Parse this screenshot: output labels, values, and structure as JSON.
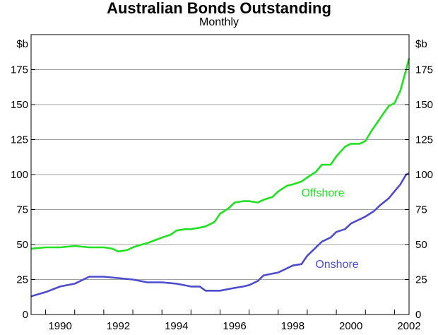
{
  "chart_data": {
    "type": "line",
    "title": "Australian Bonds Outstanding",
    "subtitle": "Monthly",
    "ylabel_left": "$b",
    "ylabel_right": "$b",
    "ylim": [
      0,
      200
    ],
    "yticks": [
      0,
      25,
      50,
      75,
      100,
      125,
      150,
      175
    ],
    "xlim": [
      1989.5,
      2002.5
    ],
    "xticks": [
      1990,
      1992,
      1994,
      1996,
      1998,
      2000,
      2002
    ],
    "grid": true,
    "series": [
      {
        "name": "Offshore",
        "color": "#22e022",
        "x": [
          1989.5,
          1990.0,
          1990.5,
          1991.0,
          1991.5,
          1992.0,
          1992.3,
          1992.5,
          1992.8,
          1993.0,
          1993.3,
          1993.5,
          1994.0,
          1994.3,
          1994.5,
          1994.8,
          1995.0,
          1995.3,
          1995.5,
          1995.8,
          1996.0,
          1996.3,
          1996.5,
          1996.8,
          1997.0,
          1997.3,
          1997.5,
          1997.8,
          1998.0,
          1998.3,
          1998.5,
          1998.8,
          1999.0,
          1999.3,
          1999.5,
          1999.8,
          2000.0,
          2000.3,
          2000.5,
          2000.8,
          2001.0,
          2001.2,
          2001.5,
          2001.8,
          2002.0,
          2002.2,
          2002.4,
          2002.5
        ],
        "values": [
          47,
          48,
          48,
          49,
          48,
          48,
          47,
          45,
          46,
          48,
          50,
          51,
          55,
          57,
          60,
          61,
          61,
          62,
          63,
          66,
          72,
          76,
          80,
          81,
          81,
          80,
          82,
          84,
          88,
          92,
          93,
          95,
          98,
          102,
          107,
          107,
          113,
          120,
          122,
          122,
          124,
          131,
          140,
          149,
          151,
          160,
          175,
          183
        ]
      },
      {
        "name": "Onshore",
        "color": "#4c4ccc",
        "x": [
          1989.5,
          1990.0,
          1990.5,
          1991.0,
          1991.5,
          1992.0,
          1992.5,
          1993.0,
          1993.5,
          1994.0,
          1994.5,
          1995.0,
          1995.3,
          1995.5,
          1996.0,
          1996.5,
          1996.8,
          1997.0,
          1997.3,
          1997.5,
          1998.0,
          1998.3,
          1998.5,
          1998.8,
          1999.0,
          1999.3,
          1999.5,
          1999.8,
          2000.0,
          2000.3,
          2000.5,
          2000.8,
          2001.0,
          2001.3,
          2001.5,
          2001.8,
          2002.0,
          2002.2,
          2002.4,
          2002.5
        ],
        "values": [
          13,
          16,
          20,
          22,
          27,
          27,
          26,
          25,
          23,
          23,
          22,
          20,
          20,
          17,
          17,
          19,
          20,
          21,
          24,
          28,
          30,
          33,
          35,
          36,
          42,
          48,
          52,
          55,
          59,
          61,
          65,
          68,
          70,
          74,
          78,
          83,
          88,
          93,
          100,
          101
        ]
      }
    ],
    "labels": [
      {
        "text": "Offshore",
        "series": 0
      },
      {
        "text": "Onshore",
        "series": 1
      }
    ]
  }
}
